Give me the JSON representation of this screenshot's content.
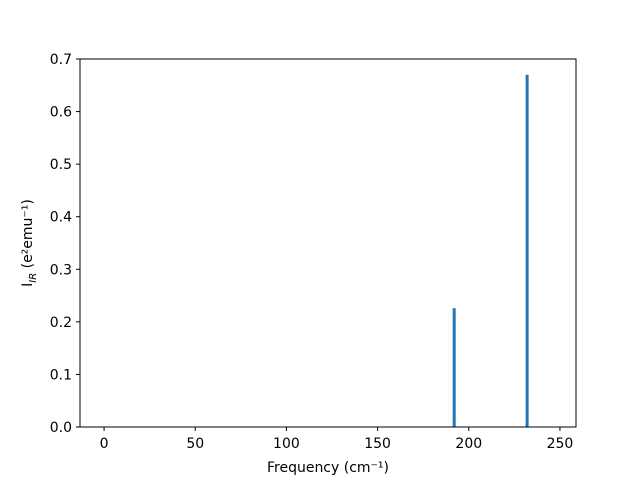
{
  "chart_data": {
    "type": "bar",
    "x": [
      192,
      232
    ],
    "values": [
      0.226,
      0.67
    ],
    "color": "#1f77b4",
    "xlabel": "Frequency (cm⁻¹)",
    "ylabel": {
      "base": "I",
      "sub": "IR",
      "rest": "(e²emu⁻¹)"
    },
    "xlim": [
      -13.2,
      258.8
    ],
    "xticks": [
      0,
      50,
      100,
      150,
      200,
      250
    ],
    "ylim": [
      0,
      0.7
    ],
    "yticks": [
      {
        "value": 0,
        "label": "0.0"
      },
      0.1,
      0.2,
      0.3,
      0.4,
      0.5,
      0.6,
      0.7
    ],
    "grid": false
  }
}
